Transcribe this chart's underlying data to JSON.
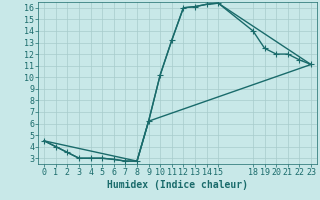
{
  "xlabel": "Humidex (Indice chaleur)",
  "bg_color": "#c8e8e8",
  "grid_color": "#a8cccc",
  "line_color": "#1a6b6b",
  "xlim": [
    -0.5,
    23.5
  ],
  "ylim": [
    2.5,
    16.5
  ],
  "xticks": [
    0,
    1,
    2,
    3,
    4,
    5,
    6,
    7,
    8,
    9,
    10,
    11,
    12,
    13,
    14,
    15,
    18,
    19,
    20,
    21,
    22,
    23
  ],
  "yticks": [
    3,
    4,
    5,
    6,
    7,
    8,
    9,
    10,
    11,
    12,
    13,
    14,
    15,
    16
  ],
  "curve1_x": [
    0,
    1,
    2,
    3,
    4,
    5,
    6,
    7,
    8,
    9,
    10,
    11,
    12,
    13,
    14,
    15,
    18,
    19,
    20,
    21,
    22,
    23
  ],
  "curve1_y": [
    4.5,
    4.0,
    3.5,
    3.0,
    3.0,
    3.0,
    2.9,
    2.75,
    2.75,
    6.2,
    10.2,
    13.2,
    16.0,
    16.1,
    16.3,
    16.4,
    14.0,
    12.5,
    12.0,
    12.0,
    11.5,
    11.1
  ],
  "curve2_x": [
    0,
    1,
    2,
    3,
    4,
    5,
    6,
    7,
    8,
    9,
    10,
    11,
    12,
    13,
    14,
    15,
    23
  ],
  "curve2_y": [
    4.5,
    4.0,
    3.5,
    3.0,
    3.0,
    3.0,
    2.9,
    2.75,
    2.75,
    6.2,
    10.2,
    13.2,
    16.0,
    16.1,
    16.3,
    16.4,
    11.1
  ],
  "curve3_x": [
    0,
    8,
    9,
    23
  ],
  "curve3_y": [
    4.5,
    2.75,
    6.2,
    11.1
  ],
  "marker": "+",
  "markersize": 4,
  "linewidth": 1.0,
  "xlabel_fontsize": 7,
  "tick_fontsize": 6
}
